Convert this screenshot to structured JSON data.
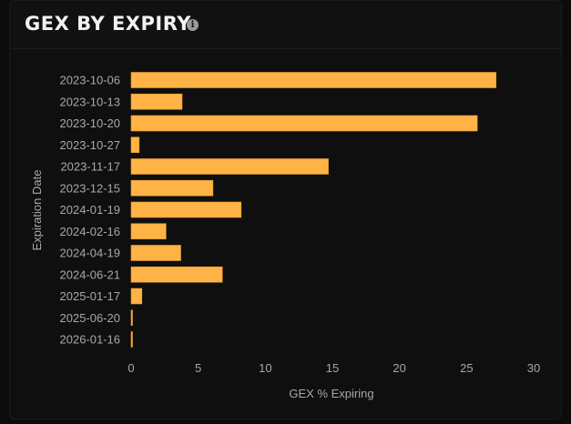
{
  "header": {
    "title": "GEX BY EXPIRY",
    "info_icon": "info-icon"
  },
  "colors": {
    "bar": "#FFB347",
    "text": "#a8a8a8",
    "background": "#0f0f0f"
  },
  "chart_data": {
    "type": "bar",
    "orientation": "horizontal",
    "xlabel": "GEX % Expiring",
    "ylabel": "Expiration Date",
    "xlim": [
      0,
      30
    ],
    "xticks": [
      0,
      5,
      10,
      15,
      20,
      25,
      30
    ],
    "grid": false,
    "categories": [
      "2023-10-06",
      "2023-10-13",
      "2023-10-20",
      "2023-10-27",
      "2023-11-17",
      "2023-12-15",
      "2024-01-19",
      "2024-02-16",
      "2024-04-19",
      "2024-06-21",
      "2025-01-17",
      "2025-06-20",
      "2026-01-16"
    ],
    "values": [
      27.2,
      3.8,
      25.8,
      0.6,
      14.7,
      6.1,
      8.2,
      2.6,
      3.7,
      6.8,
      0.8,
      0.1,
      0.1
    ]
  }
}
